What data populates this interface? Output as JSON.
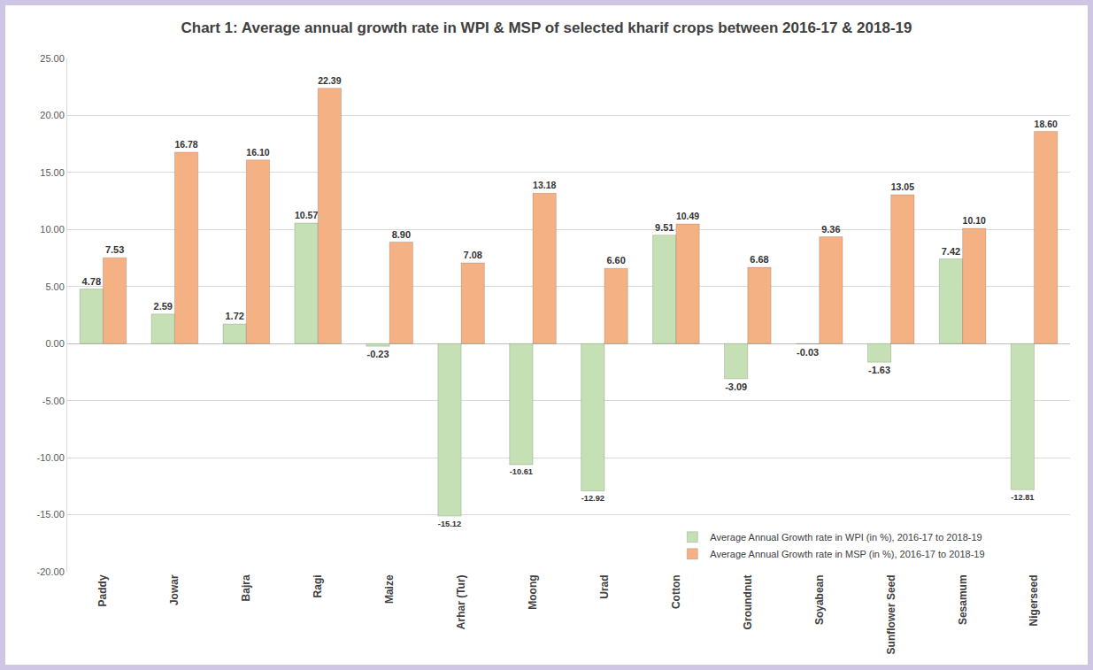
{
  "chart_data": {
    "type": "bar",
    "title": "Chart 1: Average annual growth rate in WPI & MSP of selected kharif crops between 2016-17 & 2018-19",
    "categories": [
      "Paddy",
      "Jowar",
      "Bajra",
      "Ragi",
      "Maize",
      "Arhar (Tur)",
      "Moong",
      "Urad",
      "Cotton",
      "Groundnut",
      "Soyabean",
      "Sunflower Seed",
      "Sesamum",
      "Nigerseed"
    ],
    "series": [
      {
        "name": "Average Annual Growth rate in WPI (in %), 2016-17 to 2018-19",
        "color": "#c5e0b4",
        "values": [
          4.78,
          2.59,
          1.72,
          10.57,
          -0.23,
          -15.12,
          -10.61,
          -12.92,
          9.51,
          -3.09,
          -0.03,
          -1.63,
          7.42,
          -12.81
        ],
        "value_labels": [
          "4.78",
          "2.59",
          "1.72",
          "10.57",
          "-0.23",
          "-15.12",
          "-10.61",
          "-12.92",
          "9.51",
          "-3.09",
          "-0.03",
          "-1.63",
          "7.42",
          "-12.81"
        ]
      },
      {
        "name": "Average Annual Growth rate in MSP (in %), 2016-17 to 2018-19",
        "color": "#f4b183",
        "values": [
          7.53,
          16.78,
          16.1,
          22.39,
          8.9,
          7.08,
          13.18,
          6.6,
          10.49,
          6.68,
          9.36,
          13.05,
          10.1,
          18.6
        ],
        "value_labels": [
          "7.53",
          "16.78",
          "16.10",
          "22.39",
          "8.90",
          "7.08",
          "13.18",
          "6.60",
          "10.49",
          "6.68",
          "9.36",
          "13.05",
          "10.10",
          "18.60"
        ]
      }
    ],
    "ylim": [
      -20,
      25
    ],
    "yticks": [
      {
        "value": -20,
        "label": "-20.00"
      },
      {
        "value": -15,
        "label": "-15.00"
      },
      {
        "value": -10,
        "label": "-10.00"
      },
      {
        "value": -5,
        "label": "-5.00"
      },
      {
        "value": 0,
        "label": "0.00"
      },
      {
        "value": 5,
        "label": "5.00"
      },
      {
        "value": 10,
        "label": "10.00"
      },
      {
        "value": 15,
        "label": "15.00"
      },
      {
        "value": 20,
        "label": "20.00"
      },
      {
        "value": 25,
        "label": "25.00"
      }
    ],
    "grid": true,
    "legend": "bottom right",
    "data_labels": true
  }
}
